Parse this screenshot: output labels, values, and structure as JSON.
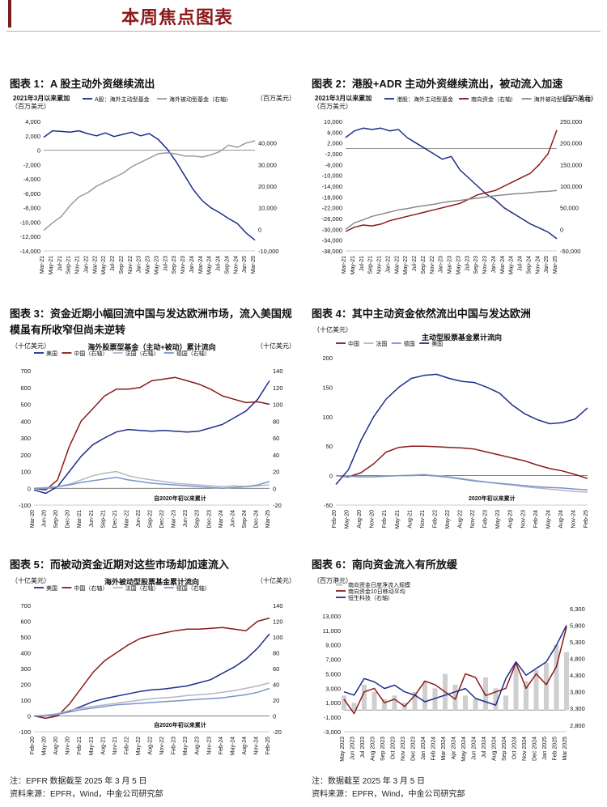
{
  "page_title": "本周焦点图表",
  "charts": [
    {
      "id": "c1",
      "fig_title": "图表 1：A 股主动外资继续流出",
      "chart_data": {
        "type": "line",
        "note": "2021年3月以来累加",
        "y_unit_left": "（百万美元）",
        "y_unit_right": "（百万美元）",
        "x_ticks": [
          "Mar-21",
          "May-21",
          "Jul-21",
          "Sep-21",
          "Nov-21",
          "Jan-22",
          "Mar-22",
          "May-22",
          "Jul-22",
          "Sep-22",
          "Nov-22",
          "Jan-23",
          "Mar-23",
          "May-23",
          "Jul-23",
          "Sep-23",
          "Nov-23",
          "Jan-24",
          "Mar-24",
          "May-24",
          "Jul-24",
          "Sep-24",
          "Nov-24",
          "Jan-25",
          "Mar-25"
        ],
        "ylim_left": [
          -14000,
          4000
        ],
        "yticks_left": [
          "4,000",
          "2,000",
          "0",
          "-2,000",
          "-4,000",
          "-6,000",
          "-8,000",
          "-10,000",
          "-12,000",
          "-14,000"
        ],
        "ylim_right": [
          -10000,
          50000
        ],
        "yticks_right": [
          "40,000",
          "30,000",
          "20,000",
          "10,000",
          "0",
          "-10,000"
        ],
        "series": [
          {
            "name": "A股：海外主动型基金",
            "axis": "left",
            "color": "#1f2d8a",
            "values": [
              1800,
              2700,
              2600,
              2500,
              2700,
              2300,
              2000,
              2400,
              1900,
              2200,
              2500,
              2000,
              2300,
              1500,
              200,
              -1500,
              -3500,
              -5500,
              -7000,
              -8000,
              -8700,
              -9500,
              -10200,
              -11500,
              -12500
            ]
          },
          {
            "name": "海外被动型基金（右轴）",
            "axis": "right",
            "color": "#9b9b9b",
            "values": [
              -500,
              3000,
              6000,
              11000,
              15000,
              17000,
              20000,
              22000,
              24000,
              26000,
              29000,
              31000,
              33000,
              35000,
              35500,
              35000,
              34000,
              34000,
              33500,
              34500,
              36000,
              39000,
              38000,
              40000,
              41000
            ]
          }
        ]
      }
    },
    {
      "id": "c2",
      "fig_title": "图表 2：港股+ADR 主动外资继续流出，被动流入加速",
      "chart_data": {
        "type": "line",
        "note": "2021年3月以来累加",
        "y_unit_left": "（百万美元）",
        "y_unit_right": "（百万美元）",
        "x_ticks": [
          "Mar-21",
          "May-21",
          "Jul-21",
          "Sep-21",
          "Nov-21",
          "Jan-22",
          "Mar-22",
          "May-22",
          "Jul-22",
          "Sep-22",
          "Nov-22",
          "Jan-23",
          "Mar-23",
          "May-23",
          "Jul-23",
          "Sep-23",
          "Nov-23",
          "Jan-24",
          "Mar-24",
          "May-24",
          "Jul-24",
          "Sep-24",
          "Nov-24",
          "Jan-25",
          "Mar-25"
        ],
        "ylim_left": [
          -38000,
          10000
        ],
        "yticks_left": [
          "10,000",
          "6,000",
          "2,000",
          "-2,000",
          "-6,000",
          "-10,000",
          "-14,000",
          "-18,000",
          "-22,000",
          "-26,000",
          "-30,000",
          "-34,000",
          "-38,000"
        ],
        "ylim_right": [
          -50000,
          250000
        ],
        "yticks_right": [
          "250,000",
          "200,000",
          "150,000",
          "100,000",
          "50,000",
          "0",
          "-50,000"
        ],
        "series": [
          {
            "name": "港股：海外主动型基金",
            "axis": "left",
            "color": "#1f2d8a",
            "values": [
              4000,
              6500,
              7500,
              7000,
              7500,
              6500,
              7000,
              4000,
              2000,
              0,
              -2000,
              -4000,
              -3000,
              -8000,
              -11000,
              -14000,
              -17000,
              -19000,
              -22000,
              -24000,
              -26000,
              -28000,
              -29500,
              -31000,
              -33500
            ]
          },
          {
            "name": "南向资金（右轴）",
            "axis": "right",
            "color": "#8b1a1a",
            "values": [
              -5000,
              5000,
              10000,
              8000,
              12000,
              20000,
              25000,
              30000,
              35000,
              40000,
              45000,
              50000,
              55000,
              60000,
              70000,
              80000,
              85000,
              90000,
              100000,
              110000,
              120000,
              130000,
              150000,
              175000,
              230000
            ]
          },
          {
            "name": "海外被动型基金（右轴）",
            "axis": "right",
            "color": "#8a8a8a",
            "values": [
              0,
              15000,
              22000,
              30000,
              35000,
              40000,
              45000,
              48000,
              52000,
              55000,
              58000,
              62000,
              65000,
              67000,
              70000,
              72000,
              75000,
              78000,
              80000,
              82000,
              83000,
              85000,
              87000,
              88000,
              90000
            ]
          }
        ]
      }
    },
    {
      "id": "c3",
      "fig_title": "图表 3：资金近期小幅回流中国与发达欧洲市场，流入美国规模虽有所收窄但尚未逆转",
      "chart_data": {
        "type": "line",
        "title": "海外股票型基金（主动+被动）累计流向",
        "y_unit_left": "（十亿美元）",
        "y_unit_right": "（十亿美元）",
        "footnote": "自2020年初以来累计",
        "x_ticks": [
          "Mar-20",
          "Jun-20",
          "Sep-20",
          "Dec-20",
          "Mar-21",
          "Jun-21",
          "Sep-21",
          "Dec-21",
          "Mar-22",
          "Jun-22",
          "Sep-22",
          "Dec-22",
          "Mar-23",
          "Jun-23",
          "Sep-23",
          "Dec-23",
          "Mar-24",
          "Jun-24",
          "Sep-24",
          "Dec-24",
          "Mar-25"
        ],
        "ylim_left": [
          -100,
          700
        ],
        "yticks_left": [
          "700",
          "600",
          "500",
          "400",
          "300",
          "200",
          "100",
          "0",
          "-100"
        ],
        "ylim_right": [
          -20,
          140
        ],
        "yticks_right": [
          "140",
          "120",
          "100",
          "80",
          "60",
          "40",
          "20",
          "0",
          "-20"
        ],
        "series": [
          {
            "name": "美国",
            "axis": "left",
            "color": "#1f2d8a",
            "values": [
              -10,
              -30,
              10,
              100,
              190,
              260,
              300,
              335,
              350,
              345,
              340,
              345,
              340,
              335,
              340,
              360,
              380,
              420,
              460,
              530,
              640
            ]
          },
          {
            "name": "中国（右轴）",
            "axis": "right",
            "color": "#8b1a1a",
            "values": [
              0,
              -2,
              10,
              50,
              80,
              95,
              110,
              118,
              118,
              120,
              128,
              130,
              132,
              128,
              124,
              118,
              110,
              106,
              102,
              103,
              100
            ]
          },
          {
            "name": "法国（右轴）",
            "axis": "right",
            "color": "#b5b5c8",
            "values": [
              0,
              1,
              2,
              5,
              10,
              15,
              18,
              20,
              15,
              12,
              10,
              8,
              6,
              5,
              4,
              3,
              2,
              3,
              2,
              3,
              4
            ]
          },
          {
            "name": "德国（右轴）",
            "axis": "right",
            "color": "#7a94c8",
            "values": [
              0,
              0,
              2,
              4,
              7,
              9,
              11,
              13,
              10,
              8,
              6,
              5,
              4,
              3,
              2,
              1,
              0,
              1,
              2,
              4,
              8
            ]
          }
        ]
      }
    },
    {
      "id": "c4",
      "fig_title": "图表 4：其中主动资金依然流出中国与发达欧洲",
      "chart_data": {
        "type": "line",
        "title": "主动型股票基金累计流向",
        "y_unit_left": "（十亿美元）",
        "footnote": "2020年初以来累计",
        "x_ticks": [
          "Feb-20",
          "May-20",
          "Aug-20",
          "Nov-20",
          "Feb-21",
          "May-21",
          "Aug-21",
          "Nov-21",
          "Feb-22",
          "May-22",
          "Aug-22",
          "Nov-22",
          "Feb-23",
          "May-23",
          "Aug-23",
          "Nov-23",
          "Feb-24",
          "May-24",
          "Aug-24",
          "Nov-24",
          "Feb-25"
        ],
        "ylim_left": [
          -50,
          200
        ],
        "yticks_left": [
          "200",
          "150",
          "100",
          "50",
          "0",
          "-50"
        ],
        "series": [
          {
            "name": "中国",
            "color": "#8b1a1a",
            "values": [
              0,
              -2,
              5,
              20,
              40,
              48,
              50,
              50,
              49,
              48,
              47,
              45,
              40,
              35,
              30,
              25,
              18,
              12,
              8,
              2,
              -5
            ]
          },
          {
            "name": "法国",
            "color": "#b5b5c8",
            "values": [
              0,
              -1,
              -2,
              -2,
              -1,
              0,
              1,
              2,
              0,
              -2,
              -5,
              -8,
              -11,
              -14,
              -16,
              -19,
              -21,
              -23,
              -25,
              -27,
              -28
            ]
          },
          {
            "name": "德国",
            "color": "#7a94c8",
            "values": [
              0,
              -1,
              -2,
              -2,
              -1,
              0,
              0,
              1,
              -1,
              -3,
              -6,
              -9,
              -11,
              -13,
              -15,
              -17,
              -19,
              -20,
              -21,
              -23,
              -24
            ]
          },
          {
            "name": "美国",
            "color": "#1f2d8a",
            "values": [
              -15,
              10,
              60,
              100,
              130,
              150,
              165,
              170,
              172,
              165,
              160,
              158,
              150,
              140,
              120,
              105,
              95,
              88,
              90,
              96,
              115
            ]
          }
        ]
      }
    },
    {
      "id": "c5",
      "fig_title": "图表 5：而被动资金近期对这些市场却加速流入",
      "chart_data": {
        "type": "line",
        "title": "海外被动型股票基金累计流向",
        "y_unit_left": "（十亿美元）",
        "y_unit_right": "（十亿美元）",
        "footnote": "自2020年初以来累计",
        "x_ticks": [
          "Feb-20",
          "May-20",
          "Aug-20",
          "Nov-20",
          "Feb-21",
          "May-21",
          "Aug-21",
          "Nov-21",
          "Feb-22",
          "May-22",
          "Aug-22",
          "Nov-22",
          "Feb-23",
          "May-23",
          "Aug-23",
          "Nov-23",
          "Feb-24",
          "May-24",
          "Aug-24",
          "Nov-24",
          "Feb-25"
        ],
        "ylim_left": [
          -100,
          700
        ],
        "yticks_left": [
          "700",
          "600",
          "500",
          "400",
          "300",
          "200",
          "100",
          "0",
          "-100"
        ],
        "ylim_right": [
          -20,
          140
        ],
        "yticks_right": [
          "140",
          "120",
          "100",
          "80",
          "60",
          "40",
          "20",
          "0",
          "-20"
        ],
        "series": [
          {
            "name": "美国",
            "axis": "left",
            "color": "#1f2d8a",
            "values": [
              0,
              0,
              10,
              30,
              60,
              90,
              110,
              125,
              140,
              155,
              165,
              170,
              180,
              190,
              210,
              230,
              270,
              310,
              360,
              430,
              520
            ]
          },
          {
            "name": "中国（右轴）",
            "axis": "right",
            "color": "#8b1a1a",
            "values": [
              0,
              -3,
              0,
              15,
              35,
              55,
              70,
              80,
              90,
              98,
              102,
              105,
              108,
              110,
              110,
              111,
              112,
              110,
              108,
              120,
              124
            ]
          },
          {
            "name": "法国（右轴）",
            "axis": "right",
            "color": "#b5b5c8",
            "values": [
              0,
              1,
              3,
              7,
              10,
              12,
              14,
              16,
              18,
              20,
              22,
              23,
              24,
              26,
              27,
              28,
              30,
              32,
              35,
              38,
              42
            ]
          },
          {
            "name": "德国（右轴）",
            "axis": "right",
            "color": "#7a94c8",
            "values": [
              0,
              0,
              2,
              5,
              8,
              10,
              12,
              14,
              15,
              16,
              17,
              18,
              19,
              20,
              21,
              22,
              23,
              25,
              27,
              30,
              35
            ]
          }
        ]
      }
    },
    {
      "id": "c6",
      "fig_title": "图表 6：南向资金流入有所放缓",
      "chart_data": {
        "type": "bar+line",
        "y_unit_left": "（百万港元）",
        "x_ticks": [
          "May 2023",
          "Jun 2023",
          "Jul 2023",
          "Aug 2023",
          "Sep 2023",
          "Oct 2023",
          "Nov 2023",
          "Dec 2023",
          "Jan 2024",
          "Feb 2024",
          "Mar 2024",
          "Apr 2024",
          "May 2024",
          "Jun 2024",
          "Jul 2024",
          "Aug 2024",
          "Sep 2024",
          "Oct 2024",
          "Nov 2024",
          "Dec 2024",
          "Jan 2025",
          "Feb 2025",
          "Mar 2025"
        ],
        "ylim_left": [
          -3000,
          14000
        ],
        "yticks_left": [
          "13,000",
          "11,000",
          "9,000",
          "7,000",
          "5,000",
          "3,000",
          "1,000",
          "-1,000",
          "-3,000"
        ],
        "ylim_right": [
          2600,
          6300
        ],
        "yticks_right": [
          "6,300",
          "5,800",
          "5,300",
          "4,800",
          "4,300",
          "3,800",
          "3,300",
          "2,800"
        ],
        "series": [
          {
            "name": "南向资金日度净流入规模",
            "axis": "left",
            "color": "#cfcfcf",
            "values": [
              2000,
              1000,
              3500,
              2500,
              1500,
              2000,
              1000,
              2500,
              4000,
              3000,
              5000,
              3500,
              2000,
              1500,
              4500,
              3000,
              2000,
              6000,
              4000,
              5500,
              6500,
              9000,
              8000
            ]
          },
          {
            "name": "南向资金10日移动平均",
            "axis": "left",
            "color": "#8b1a1a",
            "values": [
              1500,
              -500,
              2500,
              3000,
              1000,
              1500,
              500,
              2000,
              4000,
              3500,
              2500,
              1500,
              5000,
              4500,
              2000,
              2500,
              3000,
              6500,
              3000,
              5000,
              3500,
              6000,
              11500
            ]
          },
          {
            "name": "恒生科技（右轴）",
            "axis": "right",
            "color": "#1f2d8a",
            "values": [
              3800,
              3700,
              4200,
              4100,
              3900,
              4000,
              3800,
              3700,
              3500,
              3600,
              3700,
              3800,
              3900,
              3600,
              3500,
              3400,
              4200,
              4700,
              4300,
              4500,
              4700,
              5200,
              5800
            ]
          }
        ]
      }
    }
  ],
  "footer_left": {
    "note": "注：EPFR 数据截至 2025 年 3 月 5 日",
    "source": "资料来源：EPFR，Wind，中金公司研究部"
  },
  "footer_right": {
    "note": "注：数据截至 2025 年 3 月 5 日",
    "source": "资料来源：EPFR，Wind，中金公司研究部"
  }
}
